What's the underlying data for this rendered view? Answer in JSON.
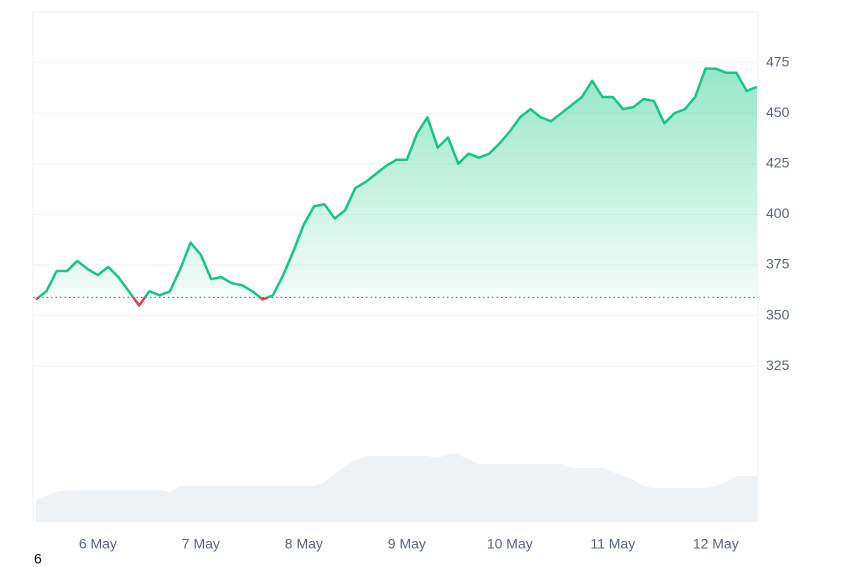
{
  "chart_data": {
    "type": "line",
    "x": [
      -0.6,
      -0.5,
      -0.4,
      -0.3,
      -0.2,
      -0.1,
      0,
      0.1,
      0.2,
      0.3,
      0.4,
      0.5,
      0.6,
      0.7,
      0.8,
      0.9,
      1,
      1.1,
      1.2,
      1.3,
      1.4,
      1.5,
      1.6,
      1.7,
      1.8,
      1.9,
      2,
      2.1,
      2.2,
      2.3,
      2.4,
      2.5,
      2.6,
      2.7,
      2.8,
      2.9,
      3,
      3.1,
      3.2,
      3.3,
      3.4,
      3.5,
      3.6,
      3.7,
      3.8,
      3.9,
      4,
      4.1,
      4.2,
      4.3,
      4.4,
      4.5,
      4.6,
      4.7,
      4.8,
      4.9,
      5,
      5.1,
      5.2,
      5.3,
      5.4,
      5.5,
      5.6,
      5.7,
      5.8,
      5.9,
      6,
      6.1,
      6.2,
      6.3,
      6.4
    ],
    "series": [
      {
        "name": "price",
        "color": "#16c784",
        "below_color": "#ea3943",
        "values": [
          358,
          362,
          372,
          372,
          377,
          373,
          370,
          374,
          369,
          362,
          355,
          362,
          360,
          362,
          373,
          386,
          380,
          368,
          369,
          366,
          365,
          362,
          358,
          360,
          370,
          382,
          395,
          404,
          405,
          398,
          402,
          413,
          416,
          420,
          424,
          427,
          427,
          440,
          448,
          433,
          438,
          425,
          430,
          428,
          430,
          435,
          441,
          448,
          452,
          448,
          446,
          450,
          454,
          458,
          466,
          458,
          458,
          452,
          453,
          457,
          456,
          445,
          450,
          452,
          458,
          472,
          472,
          470,
          470,
          461,
          463
        ]
      },
      {
        "name": "volume",
        "color": "#eff2f5",
        "values": [
          22,
          26,
          30,
          32,
          32,
          32,
          32,
          32,
          32,
          32,
          32,
          32,
          32,
          30,
          36,
          36,
          36,
          36,
          36,
          36,
          36,
          36,
          36,
          36,
          36,
          36,
          36,
          36,
          40,
          48,
          56,
          62,
          66,
          66,
          66,
          66,
          66,
          66,
          66,
          64,
          68,
          68,
          62,
          58,
          58,
          58,
          58,
          58,
          58,
          58,
          58,
          58,
          54,
          54,
          54,
          54,
          50,
          46,
          42,
          36,
          34,
          34,
          34,
          34,
          34,
          34,
          36,
          40,
          46,
          46,
          46
        ]
      }
    ],
    "baseline": 359,
    "xlim": [
      -0.63,
      6.41
    ],
    "xticks": [
      {
        "value": 0,
        "label": "6 May"
      },
      {
        "value": 1,
        "label": "7 May"
      },
      {
        "value": 2,
        "label": "8 May"
      },
      {
        "value": 3,
        "label": "9 May"
      },
      {
        "value": 4,
        "label": "10 May"
      },
      {
        "value": 5,
        "label": "11 May"
      },
      {
        "value": 6,
        "label": "12 May"
      }
    ],
    "ylim": [
      248,
      500
    ],
    "yticks": [
      325,
      350,
      375,
      400,
      425,
      450,
      475
    ],
    "grid": true,
    "footer_text": "6"
  }
}
